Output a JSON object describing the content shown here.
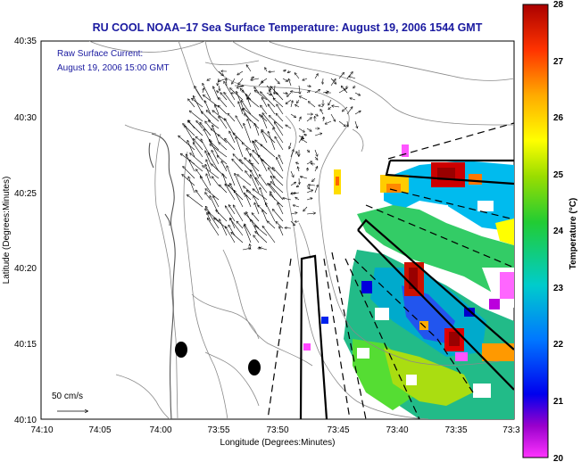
{
  "title": "RU COOL  NOAA–17  Sea Surface Temperature:  August 19, 2006 1544 GMT",
  "annotation": {
    "line1": "Raw Surface Current:",
    "line2": "August 19, 2006 15:00 GMT"
  },
  "scale_label": "50 cm/s",
  "x_axis": {
    "label": "Longitude (Degrees:Minutes)",
    "ticks": [
      "74:10",
      "74:05",
      "74:00",
      "73:55",
      "73:50",
      "73:45",
      "73:40",
      "73:35",
      "73:3"
    ]
  },
  "y_axis": {
    "label": "Latitude (Degrees:Minutes)",
    "ticks": [
      "40:35",
      "40:30",
      "40:25",
      "40:20",
      "40:15",
      "40:10"
    ]
  },
  "colorbar": {
    "label": "Temperature (°C)",
    "ticks": [
      "28",
      "27",
      "26",
      "25",
      "24",
      "23",
      "22",
      "21",
      "20"
    ],
    "range": [
      20,
      28
    ]
  },
  "colors": {
    "title": "#1a1aa0",
    "annotation": "#1a1aa0",
    "contour": "#8a8a8a",
    "coast": "#555555"
  }
}
